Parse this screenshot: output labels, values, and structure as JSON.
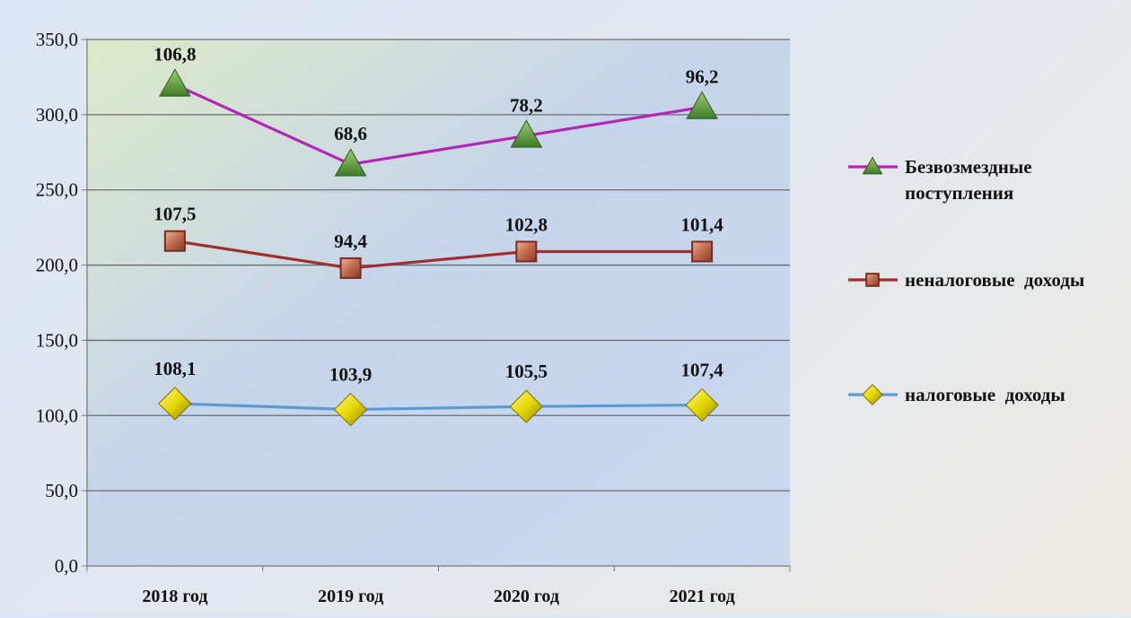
{
  "chart_data": {
    "type": "line",
    "categories": [
      "2018 год",
      "2019 год",
      "2020 год",
      "2021 год"
    ],
    "y_ticks": [
      "0,0",
      "50,0",
      "100,0",
      "150,0",
      "200,0",
      "250,0",
      "300,0",
      "350,0"
    ],
    "ylim": [
      0,
      350
    ],
    "grid": true,
    "legend_position": "right",
    "series": [
      {
        "name": "Безвозмездные поступления",
        "values": [
          320,
          267,
          286,
          305
        ],
        "labels": [
          "106,8",
          "68,6",
          "78,2",
          "96,2"
        ],
        "color": "#b427b4",
        "marker": "triangle",
        "marker_color": "#5f9a3c"
      },
      {
        "name": "неналоговые  доходы",
        "values": [
          216,
          198,
          209,
          209
        ],
        "labels": [
          "107,5",
          "94,4",
          "102,8",
          "101,4"
        ],
        "color": "#9e3030",
        "marker": "square",
        "marker_color": "#c0504d"
      },
      {
        "name": "налоговые  доходы",
        "values": [
          108,
          104,
          106,
          107
        ],
        "labels": [
          "108,1",
          "103,9",
          "105,5",
          "107,4"
        ],
        "color": "#5b9bd5",
        "marker": "diamond",
        "marker_color": "#e6d800"
      }
    ]
  }
}
